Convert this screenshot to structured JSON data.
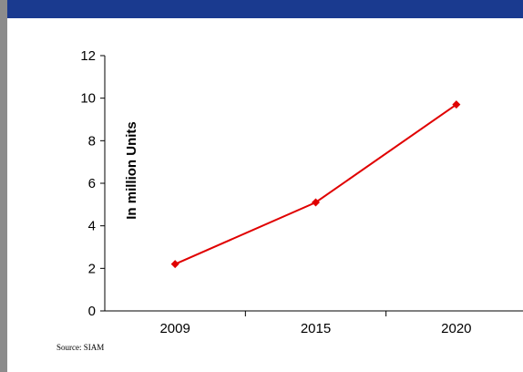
{
  "colors": {
    "header_bar": "#1a3a8f",
    "left_bar": "#8c8c8c",
    "series_line": "#e00000",
    "axis": "#000000"
  },
  "chart_data": {
    "type": "line",
    "title": "",
    "xlabel": "",
    "ylabel": "In million Units",
    "categories": [
      "2009",
      "2015",
      "2020"
    ],
    "series": [
      {
        "values": [
          2.2,
          5.1,
          9.7
        ],
        "marker": "diamond"
      }
    ],
    "ylim": [
      0,
      12
    ],
    "yticks": [
      0,
      2,
      4,
      6,
      8,
      10,
      12
    ],
    "grid": false,
    "legend": "none"
  },
  "source_note": "Source: SIAM"
}
